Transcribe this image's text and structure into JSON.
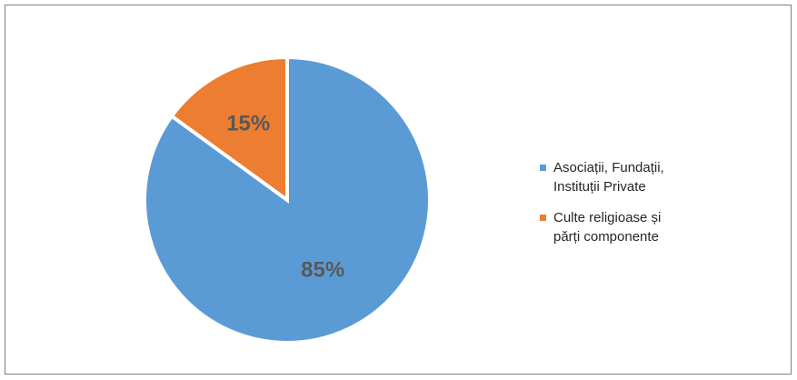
{
  "chart_data": {
    "type": "pie",
    "title": "",
    "slices": [
      {
        "label": "Asociații, Fundații, Instituții Private",
        "line1": "Asociații, Fundații,",
        "line2": "Instituții Private",
        "value": 85,
        "data_label": "85%",
        "color": "#5B9BD5"
      },
      {
        "label": "Culte religioase și părți componente",
        "line1": "Culte religioase și",
        "line2": "părți componente",
        "value": 15,
        "data_label": "15%",
        "color": "#ED7D31"
      }
    ],
    "start_angle_deg": 0,
    "direction": "clockwise",
    "legend_position": "right",
    "slice_border_color": "#FFFFFF"
  }
}
